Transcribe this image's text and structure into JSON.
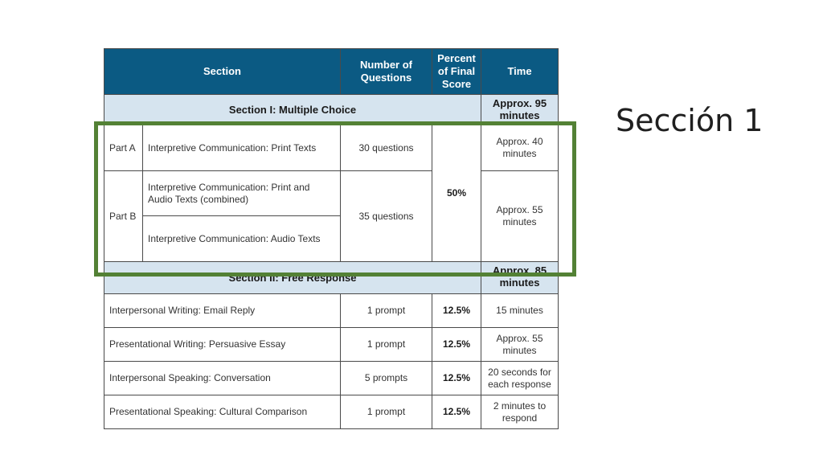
{
  "slide_title": "Sección 1",
  "table": {
    "headers": {
      "section": "Section",
      "questions": "Number of Questions",
      "percent": "Percent of Final Score",
      "time": "Time"
    },
    "section1": {
      "label": "Section I: Multiple Choice",
      "time": "Approx. 95 minutes",
      "percent": "50%",
      "part_a": {
        "label": "Part A",
        "desc": "Interpretive Communication: Print Texts",
        "questions": "30 questions",
        "time": "Approx. 40 minutes"
      },
      "part_b": {
        "label": "Part B",
        "desc1": "Interpretive Communication: Print and Audio Texts (combined)",
        "desc2": "Interpretive Communication: Audio Texts",
        "questions": "35 questions",
        "time": "Approx. 55 minutes"
      }
    },
    "section2": {
      "label": "Section II: Free Response",
      "time": "Approx. 85 minutes",
      "rows": [
        {
          "task": "Interpersonal Writing: Email Reply",
          "questions": "1 prompt",
          "percent": "12.5%",
          "time": "15 minutes"
        },
        {
          "task": "Presentational Writing: Persuasive Essay",
          "questions": "1 prompt",
          "percent": "12.5%",
          "time": "Approx. 55 minutes"
        },
        {
          "task": "Interpersonal Speaking: Conversation",
          "questions": "5 prompts",
          "percent": "12.5%",
          "time": "20 seconds for each response"
        },
        {
          "task": "Presentational Speaking: Cultural Comparison",
          "questions": "1 prompt",
          "percent": "12.5%",
          "time": "2 minutes to respond"
        }
      ]
    }
  },
  "colors": {
    "header_bg": "#0b5a83",
    "band_bg": "#d6e4ef",
    "highlight": "#538135"
  }
}
